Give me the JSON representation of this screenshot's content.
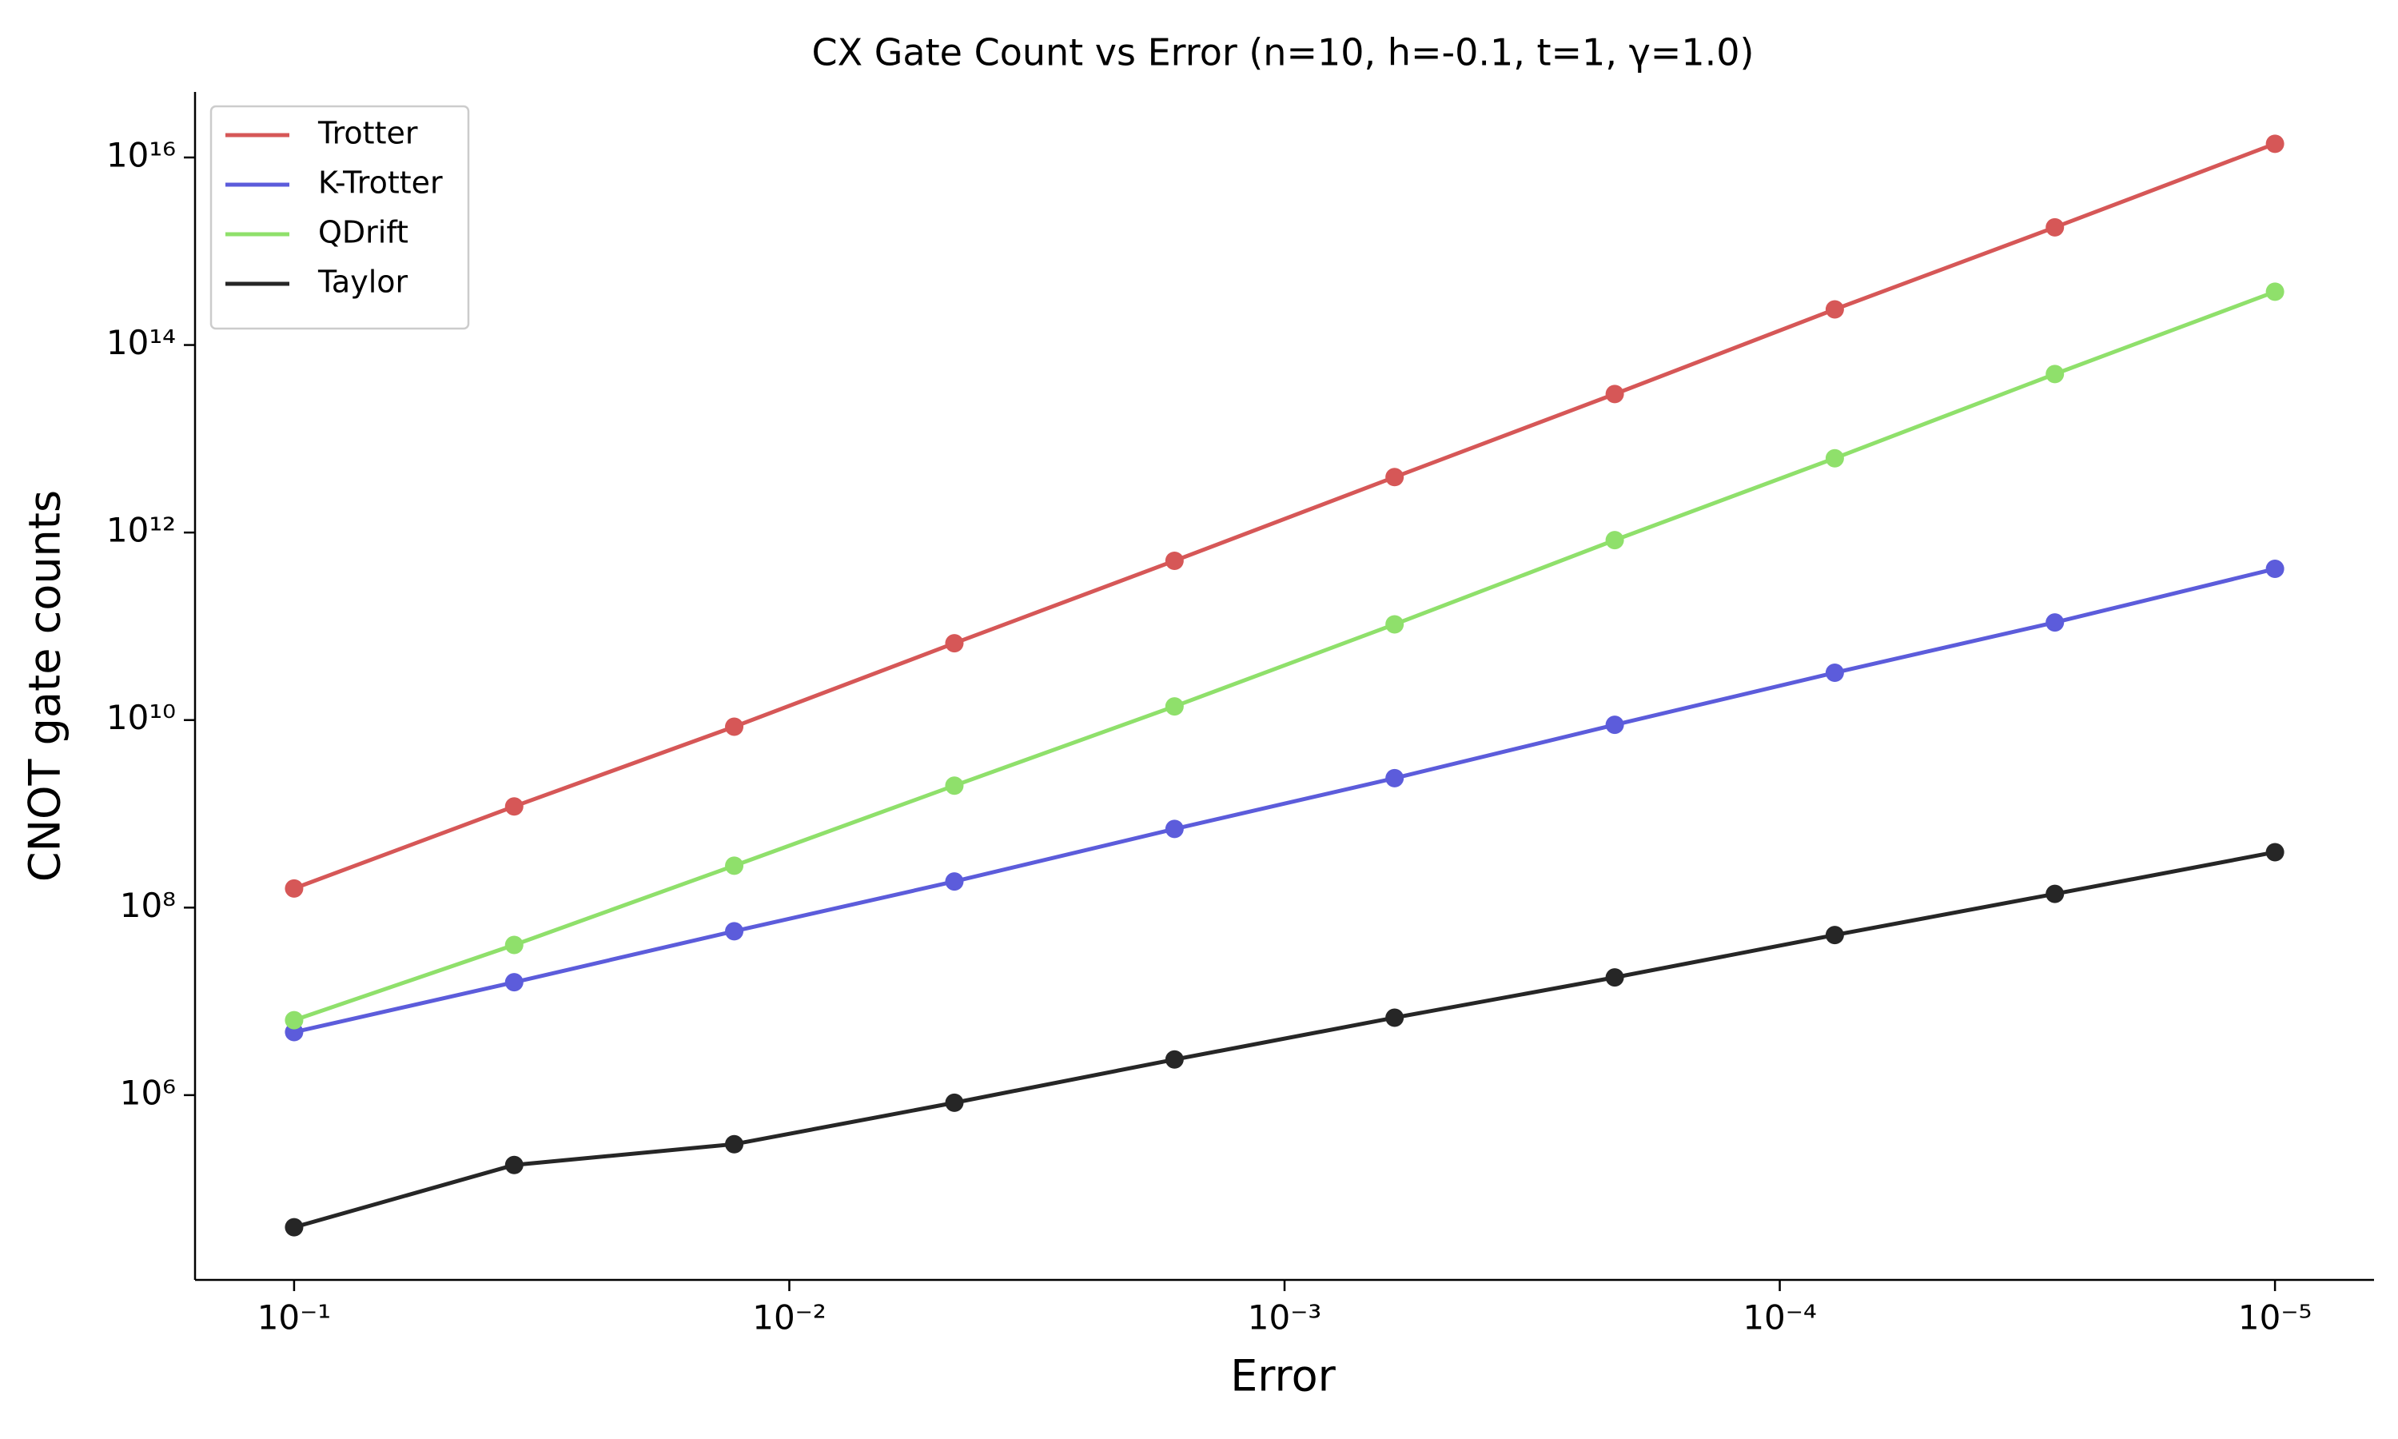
{
  "chart_data": {
    "type": "line",
    "title": "CX Gate Count vs Error (n=10, h=-0.1, t=1, γ=1.0)",
    "x_label": "Error",
    "y_label": "CNOT gate counts",
    "x": [
      0.1,
      0.03594,
      0.01292,
      0.004642,
      0.001668,
      0.0005995,
      0.0002154,
      7.743e-05,
      2.783e-05,
      1e-05
    ],
    "series": [
      {
        "name": "Trotter",
        "color": "#d65757",
        "values": [
          160000000.0,
          1200000000.0,
          8500000000.0,
          66000000000.0,
          500000000000.0,
          3900000000000.0,
          30000000000000.0,
          240000000000000.0,
          1800000000000000.0,
          1.4e+16
        ]
      },
      {
        "name": "K-Trotter",
        "color": "#5c5cdb",
        "values": [
          4700000.0,
          16000000.0,
          56000000.0,
          190000000.0,
          690000000.0,
          2400000000.0,
          8900000000.0,
          32000000000.0,
          110000000000.0,
          410000000000.0
        ]
      },
      {
        "name": "QDrift",
        "color": "#8fe06b",
        "values": [
          6300000.0,
          40000000.0,
          280000000.0,
          2000000000.0,
          14000000000.0,
          105000000000.0,
          830000000000.0,
          6200000000000.0,
          49000000000000.0,
          370000000000000.0
        ]
      },
      {
        "name": "Taylor",
        "color": "#262626",
        "values": [
          39000.0,
          180000.0,
          300000.0,
          830000.0,
          2400000.0,
          6700000.0,
          18000000.0,
          51000000.0,
          140000000.0,
          390000000.0
        ]
      }
    ],
    "x_scale": "log",
    "y_scale": "log",
    "xlim": [
      0.1585,
      6.31e-06
    ],
    "ylim": [
      10700,
      5e+16
    ],
    "xticks": [
      {
        "value": 0.1,
        "label": "10⁻¹"
      },
      {
        "value": 0.01,
        "label": "10⁻²"
      },
      {
        "value": 0.001,
        "label": "10⁻³"
      },
      {
        "value": 0.0001,
        "label": "10⁻⁴"
      },
      {
        "value": 1e-05,
        "label": "10⁻⁵"
      }
    ],
    "yticks": [
      {
        "value": 1000000.0,
        "label": "10⁶"
      },
      {
        "value": 100000000.0,
        "label": "10⁸"
      },
      {
        "value": 10000000000.0,
        "label": "10¹⁰"
      },
      {
        "value": 1000000000000.0,
        "label": "10¹²"
      },
      {
        "value": 100000000000000.0,
        "label": "10¹⁴"
      },
      {
        "value": 1e+16,
        "label": "10¹⁶"
      }
    ],
    "grid": false,
    "legend": "upper left"
  }
}
